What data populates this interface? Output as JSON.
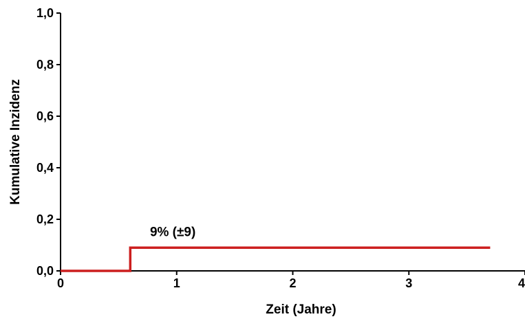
{
  "chart_data": {
    "type": "line",
    "step": true,
    "xlabel": "Zeit (Jahre)",
    "ylabel": "Kumulative Inzidenz",
    "xlim": [
      0,
      4
    ],
    "ylim": [
      0,
      1.0
    ],
    "x_ticks": [
      "0",
      "1",
      "2",
      "3",
      "4"
    ],
    "y_ticks": [
      "0,0",
      "0,2",
      "0,4",
      "0,6",
      "0,8",
      "1,0"
    ],
    "grid": false,
    "series": [
      {
        "color": "#cc1f1f",
        "x": [
          0,
          0.6,
          0.6,
          3.7
        ],
        "y": [
          0,
          0,
          0.09,
          0.09
        ]
      }
    ],
    "annotations": [
      {
        "text": "9% (±9)",
        "x": 0.77,
        "y": 0.135
      }
    ]
  }
}
